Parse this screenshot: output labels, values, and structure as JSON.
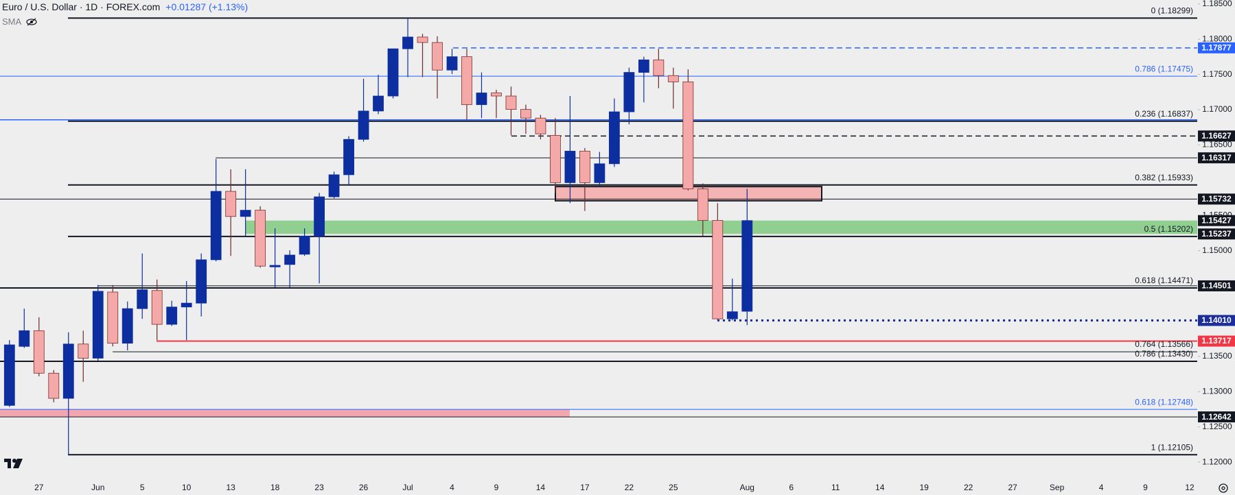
{
  "chart_data": {
    "type": "candlestick",
    "title": "Euro / U.S. Dollar · 1D · FOREX.com",
    "subtitle": "+0.01287 (+1.13%)",
    "indicator": "SMA",
    "up_color": "#0c2e9e",
    "down_color": "#f5a8a8",
    "grid": false,
    "categories": [
      null,
      null,
      "27",
      null,
      null,
      null,
      "Jun",
      null,
      null,
      "5",
      null,
      null,
      "10",
      null,
      null,
      "13",
      null,
      null,
      "18",
      null,
      null,
      "23",
      null,
      null,
      "26",
      null,
      null,
      "Jul",
      null,
      null,
      "4",
      null,
      null,
      "9",
      null,
      null,
      "14",
      null,
      null,
      "17",
      null,
      null,
      "22",
      null,
      null,
      "25",
      null,
      null,
      null,
      null,
      "Aug",
      null,
      null,
      "6",
      null,
      null,
      "11",
      null,
      null,
      "14",
      null,
      null,
      "19",
      null,
      null,
      "22",
      null,
      null,
      "27",
      null,
      null,
      "Sep",
      null,
      null,
      "4",
      null,
      null,
      "9",
      null,
      null,
      "12"
    ],
    "open": [
      1.12805,
      1.13642,
      1.13865,
      1.13262,
      1.12905,
      1.13676,
      1.13475,
      1.14413,
      1.13687,
      1.14178,
      1.14435,
      1.13955,
      1.14201,
      1.14256,
      1.14871,
      1.15842,
      1.15485,
      1.15574,
      1.1477,
      1.14804,
      1.14949,
      1.15206,
      1.15764,
      1.16077,
      1.16579,
      1.16981,
      1.17194,
      1.17864,
      1.18031,
      1.17953,
      1.17562,
      1.17752,
      1.17071,
      1.17238,
      1.17194,
      1.17004,
      1.16881,
      1.16635,
      1.15965,
      1.16412,
      1.15965,
      1.16233,
      1.1697,
      1.17529,
      1.17707,
      1.17484,
      1.17395,
      1.15876,
      1.15429,
      1.14033,
      1.1414,
      null,
      null,
      null,
      null,
      null,
      null,
      null,
      null,
      null,
      null,
      null,
      null,
      null,
      null,
      null,
      null,
      null,
      null,
      null,
      null,
      null,
      null,
      null,
      null,
      null,
      null,
      null,
      null,
      null,
      null
    ],
    "high": [
      1.13731,
      1.14178,
      1.14055,
      1.13307,
      1.13843,
      1.13865,
      1.14513,
      1.14513,
      1.14279,
      1.1496,
      1.14591,
      1.1429,
      1.14569,
      1.1496,
      1.163,
      1.16155,
      1.16155,
      1.1563,
      1.15317,
      1.15005,
      1.15317,
      1.1582,
      1.16121,
      1.16624,
      1.17439,
      1.17495,
      1.17864,
      1.18299,
      1.18076,
      1.18042,
      1.17864,
      1.17864,
      1.17529,
      1.17283,
      1.17328,
      1.17071,
      1.16926,
      1.16881,
      1.17194,
      1.16456,
      1.16401,
      1.1716,
      1.17596,
      1.17752,
      1.17864,
      1.17596,
      1.17573,
      1.15954,
      1.15675,
      1.14603,
      1.15876,
      null,
      null,
      null,
      null,
      null,
      null,
      null,
      null,
      null,
      null,
      null,
      null,
      null,
      null,
      null,
      null,
      null,
      null,
      null,
      null,
      null,
      null,
      null,
      null,
      null,
      null,
      null,
      null,
      null,
      null
    ],
    "low": [
      1.12782,
      1.1362,
      1.13218,
      1.12849,
      1.12105,
      1.1314,
      1.13441,
      1.13642,
      1.13586,
      1.14033,
      1.13731,
      1.13932,
      1.13731,
      1.14067,
      1.14848,
      1.14926,
      1.15206,
      1.14759,
      1.1448,
      1.1448,
      1.14926,
      1.14536,
      1.15742,
      1.15932,
      1.16546,
      1.16937,
      1.1716,
      1.17462,
      1.17462,
      1.1716,
      1.17506,
      1.16859,
      1.16881,
      1.16881,
      1.16635,
      1.16657,
      1.16579,
      1.1582,
      1.15675,
      1.15563,
      1.1592,
      1.16188,
      1.16792,
      1.17104,
      1.17305,
      1.17015,
      1.15853,
      1.15206,
      1.14022,
      1.14011,
      1.13944,
      null,
      null,
      null,
      null,
      null,
      null,
      null,
      null,
      null,
      null,
      null,
      null,
      null,
      null,
      null,
      null,
      null,
      null,
      null,
      null,
      null,
      null,
      null,
      null,
      null,
      null,
      null,
      null,
      null,
      null
    ],
    "close": [
      1.13664,
      1.13865,
      1.13262,
      1.12905,
      1.13676,
      1.13475,
      1.14424,
      1.13687,
      1.14178,
      1.14446,
      1.13955,
      1.14201,
      1.14256,
      1.14871,
      1.15842,
      1.15485,
      1.15574,
      1.14781,
      1.14792,
      1.14938,
      1.15206,
      1.15764,
      1.16077,
      1.16579,
      1.16981,
      1.17194,
      1.17864,
      1.18031,
      1.17953,
      1.17562,
      1.17752,
      1.17071,
      1.17238,
      1.17194,
      1.17004,
      1.16881,
      1.16657,
      1.15965,
      1.16412,
      1.15965,
      1.16233,
      1.1697,
      1.17529,
      1.17707,
      1.17484,
      1.17395,
      1.15876,
      1.15429,
      1.14033,
      1.14134,
      1.15427,
      null,
      null,
      null,
      null,
      null,
      null,
      null,
      null,
      null,
      null,
      null,
      null,
      null,
      null,
      null,
      null,
      null,
      null,
      null,
      null,
      null,
      null,
      null,
      null,
      null,
      null,
      null,
      null,
      null,
      null
    ],
    "ylim": [
      1.11855,
      1.18556
    ],
    "yticks": [
      {
        "value": 1.185,
        "label": "1.18500"
      },
      {
        "value": 1.18,
        "label": "1.18000"
      },
      {
        "value": 1.175,
        "label": "1.17500"
      },
      {
        "value": 1.17,
        "label": "1.17000"
      },
      {
        "value": 1.165,
        "label": "1.16500"
      },
      {
        "value": 1.155,
        "label": "1.15500"
      },
      {
        "value": 1.15,
        "label": "1.15000"
      },
      {
        "value": 1.135,
        "label": "1.13500"
      },
      {
        "value": 1.13,
        "label": "1.13000"
      },
      {
        "value": 1.125,
        "label": "1.12500"
      },
      {
        "value": 1.12,
        "label": "1.12000"
      }
    ],
    "zones": [
      {
        "low": 1.15708,
        "high": 1.15909,
        "color": "#f4b4b4",
        "border": true
      },
      {
        "low": 1.15237,
        "high": 1.15427,
        "color": "#90cf90",
        "border": false
      },
      {
        "low": 1.12642,
        "high": 1.12748,
        "color": "#f2a6b0",
        "border": false
      }
    ],
    "levels": [
      {
        "value": 1.18299,
        "label": "0 (1.18299)",
        "color": "#131722",
        "style": "solid",
        "width": 2
      },
      {
        "value": 1.17877,
        "color": "#2962ff",
        "style": "dashed",
        "width": 1.5
      },
      {
        "value": 1.17475,
        "label": "0.786 (1.17475)",
        "color": "#2962ff",
        "style": "solid",
        "width": 1
      },
      {
        "value": 1.16857,
        "color": "#2962ff",
        "style": "solid",
        "width": 1.5
      },
      {
        "value": 1.16837,
        "label": "0.236 (1.16837)",
        "color": "#131722",
        "style": "solid",
        "width": 2
      },
      {
        "value": 1.16627,
        "color": "#131722",
        "style": "dashed",
        "width": 1.5
      },
      {
        "value": 1.16317,
        "color": "#131722",
        "style": "solid",
        "width": 1
      },
      {
        "value": 1.15933,
        "label": "0.382 (1.15933)",
        "color": "#131722",
        "style": "solid",
        "width": 2
      },
      {
        "value": 1.15732,
        "color": "#131722",
        "style": "solid",
        "width": 1
      },
      {
        "value": 1.15202,
        "label": "0.5 (1.15202)",
        "color": "#131722",
        "style": "solid",
        "width": 2
      },
      {
        "value": 1.14501,
        "color": "#131722",
        "style": "solid",
        "width": 1
      },
      {
        "value": 1.14471,
        "label": "0.618 (1.14471)",
        "color": "#131722",
        "style": "solid",
        "width": 2
      },
      {
        "value": 1.1401,
        "color": "#1a2d9b",
        "style": "dotted",
        "width": 3
      },
      {
        "value": 1.13717,
        "color": "#f23645",
        "style": "solid",
        "width": 2
      },
      {
        "value": 1.13566,
        "label": "0.764 (1.13566)",
        "color": "#131722",
        "style": "solid",
        "width": 1
      },
      {
        "value": 1.1343,
        "label": "0.786 (1.13430)",
        "color": "#131722",
        "style": "solid",
        "width": 2
      },
      {
        "value": 1.12748,
        "label": "0.618 (1.12748)",
        "color": "#2962ff",
        "style": "solid",
        "width": 1
      },
      {
        "value": 1.12642,
        "color": "#131722",
        "style": "solid",
        "width": 1
      },
      {
        "value": 1.12105,
        "label": "1 (1.12105)",
        "color": "#131722",
        "style": "solid",
        "width": 2
      }
    ],
    "price_labels": [
      {
        "value": 1.17877,
        "label": "1.17877",
        "color": "#2962ff"
      },
      {
        "value": 1.16627,
        "label": "1.16627",
        "color": "#131722"
      },
      {
        "value": 1.16317,
        "label": "1.16317",
        "color": "#131722"
      },
      {
        "value": 1.15732,
        "label": "1.15732",
        "color": "#131722"
      },
      {
        "value": 1.15427,
        "label": "1.15427",
        "color": "#131722"
      },
      {
        "value": 1.15237,
        "label": "1.15237",
        "color": "#131722"
      },
      {
        "value": 1.14501,
        "label": "1.14501",
        "color": "#131722"
      },
      {
        "value": 1.1401,
        "label": "1.14010",
        "color": "#1a2d9b"
      },
      {
        "value": 1.13717,
        "label": "1.13717",
        "color": "#f23645"
      },
      {
        "value": 1.12642,
        "label": "1.12642",
        "color": "#131722"
      }
    ]
  }
}
